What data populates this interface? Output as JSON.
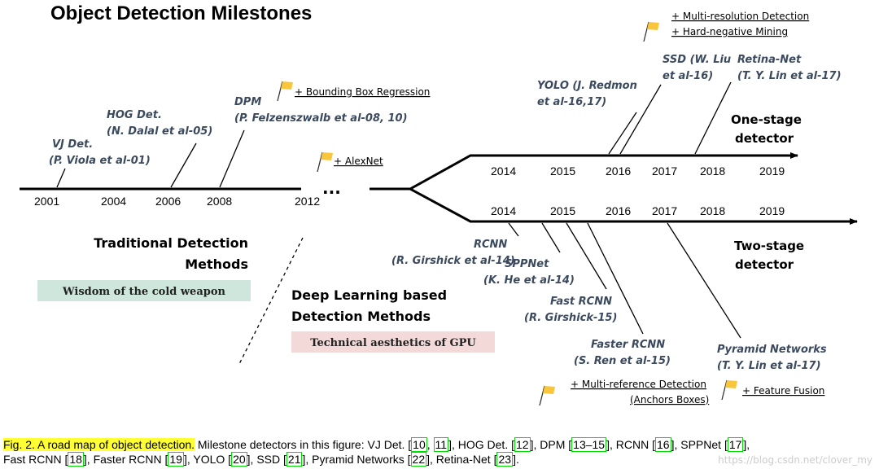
{
  "title": "Object Detection Milestones",
  "traditional": {
    "heading_line1": "Traditional Detection",
    "heading_line2": "Methods",
    "badge": "Wisdom of the cold weapon",
    "years": [
      "2001",
      "2004",
      "2006",
      "2008",
      "2012"
    ],
    "ellipsis": "...",
    "detectors": [
      {
        "line1": "VJ Det.",
        "line2": "(P. Viola et al-01)"
      },
      {
        "line1": "HOG Det.",
        "line2": "(N. Dalal et al-05)"
      },
      {
        "line1": "DPM",
        "line2": "(P. Felzenszwalb et al-08, 10)"
      }
    ]
  },
  "deep": {
    "heading_line1": "Deep Learning based",
    "heading_line2": "Detection Methods",
    "badge": "Technical aesthetics of GPU"
  },
  "one_stage": {
    "label_line1": "One-stage",
    "label_line2": "detector",
    "years": [
      "2014",
      "2015",
      "2016",
      "2017",
      "2018",
      "2019"
    ],
    "detectors": [
      {
        "line1": "YOLO (J. Redmon",
        "line2": "et al-16,17)"
      },
      {
        "line1": "SSD (W. Liu",
        "line2": "et al-16)"
      },
      {
        "line1": "Retina-Net",
        "line2": "(T. Y. Lin et al-17)"
      }
    ]
  },
  "two_stage": {
    "label_line1": "Two-stage",
    "label_line2": "detector",
    "years": [
      "2014",
      "2015",
      "2016",
      "2017",
      "2018",
      "2019"
    ],
    "detectors": [
      {
        "line1": "RCNN",
        "line2": "(R. Girshick et al-14)"
      },
      {
        "line1": "SPPNet",
        "line2": "(K. He et al-14)"
      },
      {
        "line1": "Fast RCNN",
        "line2": "(R. Girshick-15)"
      },
      {
        "line1": "Faster RCNN",
        "line2": "(S. Ren et al-15)"
      },
      {
        "line1": "Pyramid Networks",
        "line2": "(T. Y. Lin et al-17)"
      }
    ]
  },
  "milestones": {
    "bbox_regression": "+ Bounding Box Regression",
    "alexnet": "+ AlexNet",
    "multi_resolution": "+ Multi-resolution Detection",
    "hard_negative": "+ Hard-negative Mining",
    "multi_reference": "+ Multi-reference Detection",
    "anchors": "(Anchors Boxes)",
    "feature_fusion": "+ Feature Fusion"
  },
  "colors": {
    "line": "#000000",
    "detector_text": "#3b4a5e",
    "flag": "#f7c63c",
    "traditional_badge_bg": "#cfe6dd",
    "deep_badge_bg": "#f4d9d9",
    "caption_highlight": "#ffff33",
    "ref_box": "#00dd00"
  },
  "caption": {
    "label": "Fig. 2.  A road map of object detection.",
    "text1": " Milestone detectors in this figure: VJ Det. ",
    "text2": "Fast RCNN ",
    "refs": [
      "10",
      "11",
      "12",
      "13–15",
      "16",
      "17",
      "18",
      "19",
      "20",
      "21",
      "22",
      "23"
    ],
    "names": [
      "HOG Det.",
      "DPM",
      "RCNN",
      "SPPNet",
      "Faster RCNN",
      "YOLO",
      "SSD",
      "Pyramid Networks",
      "Retina-Net"
    ]
  },
  "watermark": "https://blog.csdn.net/clover_my"
}
